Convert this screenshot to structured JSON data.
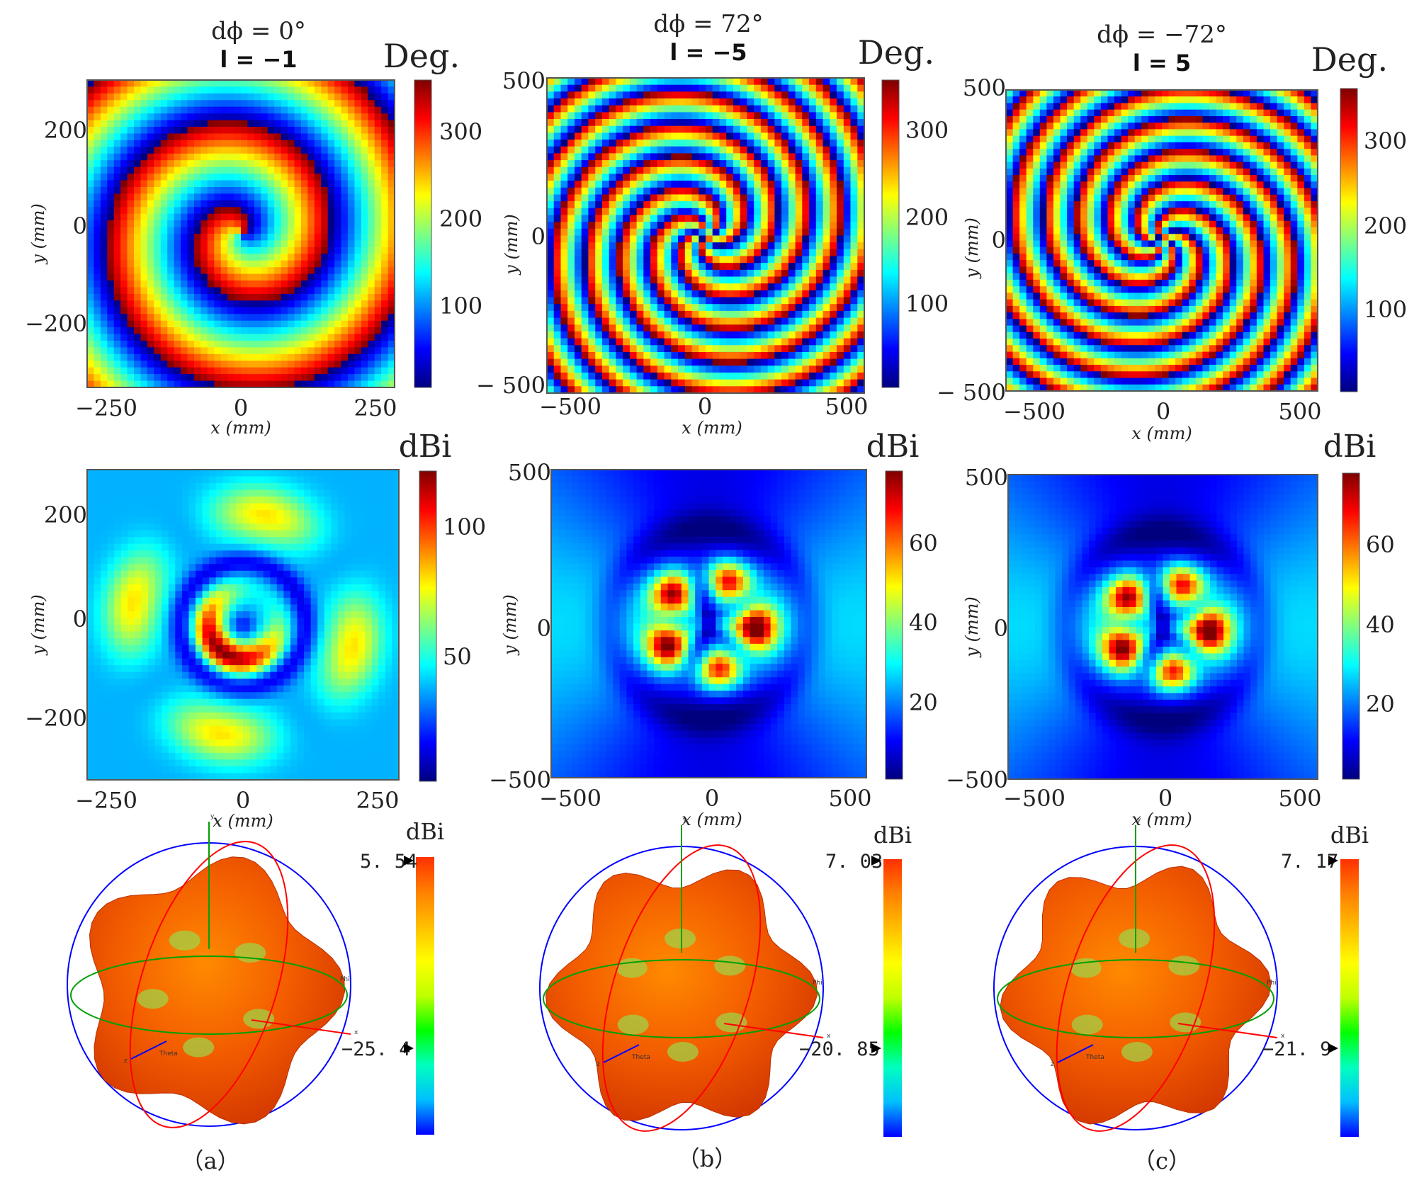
{
  "colors": {
    "jet": [
      "#00007f",
      "#0000ff",
      "#007fff",
      "#00ffff",
      "#7fff7f",
      "#ffff00",
      "#ff7f00",
      "#ff0000",
      "#7f0000"
    ],
    "far_field": [
      "#0000ff",
      "#00bfff",
      "#00ffbf",
      "#00ff00",
      "#bfff00",
      "#ffff00",
      "#ffbf00",
      "#ff8000",
      "#ff3000"
    ],
    "axis_x": "#ff0000",
    "axis_y": "#00a000",
    "axis_z": "#0000ff"
  },
  "chart_data": [
    {
      "type": "heatmap",
      "panel": "a",
      "role": "phase",
      "title": "dϕ = 0°",
      "subtitle": "l = −1",
      "xlabel": "x (mm)",
      "ylabel": "y (mm)",
      "xlim": [
        -320,
        320
      ],
      "ylim": [
        -320,
        320
      ],
      "xticks": [
        "−250",
        "0",
        "250"
      ],
      "yticks": [
        "200",
        "0",
        "−200"
      ],
      "colorbar_label": "Deg.",
      "colorbar_range": [
        0,
        360
      ],
      "colorbar_ticks": [
        "300",
        "200",
        "100"
      ],
      "oam_mode": -1
    },
    {
      "type": "heatmap",
      "panel": "b",
      "role": "phase",
      "title": "dϕ = 72°",
      "subtitle": "l = −5",
      "xlabel": "x (mm)",
      "ylabel": "y (mm)",
      "xlim": [
        -500,
        500
      ],
      "ylim": [
        -500,
        500
      ],
      "xticks": [
        "−500",
        "0",
        "500"
      ],
      "yticks": [
        "500",
        "0",
        "− 500"
      ],
      "colorbar_label": "Deg.",
      "colorbar_range": [
        0,
        360
      ],
      "colorbar_ticks": [
        "300",
        "200",
        "100"
      ],
      "oam_mode": -5
    },
    {
      "type": "heatmap",
      "panel": "c",
      "role": "phase",
      "title": "dϕ = −72°",
      "subtitle": "l = 5",
      "xlabel": "x (mm)",
      "ylabel": "y (mm)",
      "xlim": [
        -500,
        500
      ],
      "ylim": [
        -500,
        500
      ],
      "xticks": [
        "−500",
        "0",
        "500"
      ],
      "yticks": [
        "500",
        "0",
        "− 500"
      ],
      "colorbar_label": "Deg.",
      "colorbar_range": [
        0,
        360
      ],
      "colorbar_ticks": [
        "300",
        "200",
        "100"
      ],
      "oam_mode": 5
    },
    {
      "type": "heatmap",
      "panel": "a",
      "role": "magnitude",
      "xlabel": "x (mm)",
      "ylabel": "y (mm)",
      "xlim": [
        -320,
        320
      ],
      "ylim": [
        -320,
        320
      ],
      "xticks": [
        "−250",
        "0",
        "250"
      ],
      "yticks": [
        "200",
        "0",
        "−200"
      ],
      "colorbar_label": "dBi",
      "colorbar_range": [
        0,
        120
      ],
      "colorbar_ticks": [
        "100",
        "50"
      ],
      "oam_mode": -1
    },
    {
      "type": "heatmap",
      "panel": "b",
      "role": "magnitude",
      "xlabel": "x (mm)",
      "ylabel": "y (mm)",
      "xlim": [
        -500,
        500
      ],
      "ylim": [
        -500,
        500
      ],
      "xticks": [
        "−500",
        "0",
        "500"
      ],
      "yticks": [
        "500",
        "0",
        "−500"
      ],
      "colorbar_label": "dBi",
      "colorbar_range": [
        0,
        80
      ],
      "colorbar_ticks": [
        "60",
        "40",
        "20"
      ],
      "oam_mode": -5
    },
    {
      "type": "heatmap",
      "panel": "c",
      "role": "magnitude",
      "xlabel": "x (mm)",
      "ylabel": "y (mm)",
      "xlim": [
        -500,
        500
      ],
      "ylim": [
        -500,
        500
      ],
      "xticks": [
        "−500",
        "0",
        "500"
      ],
      "yticks": [
        "500",
        "0",
        "−500"
      ],
      "colorbar_label": "dBi",
      "colorbar_range": [
        0,
        80
      ],
      "colorbar_ticks": [
        "60",
        "40",
        "20"
      ],
      "oam_mode": 5
    },
    {
      "type": "other",
      "panel": "a",
      "role": "3d-far-field-pattern",
      "colorbar_label": "dBi",
      "max_label": "5. 54",
      "min_label": "−25. 4",
      "max_dbi": 5.54,
      "min_dbi": -25.4,
      "axis_labels": [
        "y",
        "x",
        "z",
        "Phi",
        "Theta"
      ],
      "caption": "（a）"
    },
    {
      "type": "other",
      "panel": "b",
      "role": "3d-far-field-pattern",
      "colorbar_label": "dBi",
      "max_label": "7. 03",
      "min_label": "−20. 85",
      "max_dbi": 7.03,
      "min_dbi": -20.85,
      "axis_labels": [
        "y",
        "x",
        "z",
        "Phi",
        "Theta"
      ],
      "caption": "（b）"
    },
    {
      "type": "other",
      "panel": "c",
      "role": "3d-far-field-pattern",
      "colorbar_label": "dBi",
      "max_label": "7. 17",
      "min_label": "−21. 9",
      "max_dbi": 7.17,
      "min_dbi": -21.9,
      "axis_labels": [
        "y",
        "x",
        "z",
        "Phi",
        "Theta"
      ],
      "caption": "（c）"
    }
  ]
}
